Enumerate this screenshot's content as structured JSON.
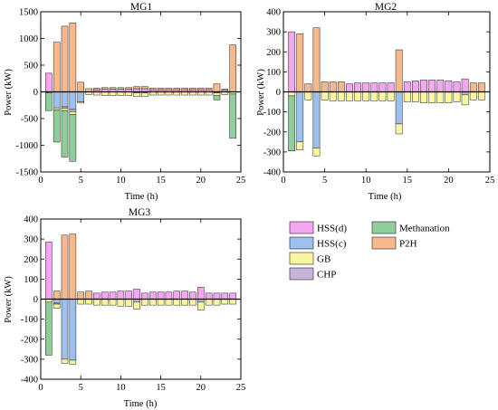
{
  "colors": {
    "hss_d": "#f5a6f0",
    "hss_c": "#9ec0ee",
    "gb": "#faf5a0",
    "chp": "#c6b4d8",
    "methanation": "#8fce9a",
    "p2h": "#f7b98c",
    "edge": "#222222"
  },
  "legend": {
    "items": [
      {
        "key": "hss_d",
        "label": "HSS(d)"
      },
      {
        "key": "hss_c",
        "label": "HSS(c)"
      },
      {
        "key": "gb",
        "label": "GB"
      },
      {
        "key": "chp",
        "label": "CHP"
      },
      {
        "key": "methanation",
        "label": "Methanation"
      },
      {
        "key": "p2h",
        "label": "P2H"
      }
    ]
  },
  "chart_data": [
    {
      "type": "bar",
      "title": "MG1",
      "xlabel": "Time (h)",
      "ylabel": "Power (kW)",
      "xlim": [
        0,
        25
      ],
      "ylim": [
        -1500,
        1500
      ],
      "xticks": [
        0,
        5,
        10,
        15,
        20,
        25
      ],
      "yticks": [
        -1500,
        -1000,
        -500,
        0,
        500,
        1000,
        1500
      ],
      "x": [
        1,
        2,
        3,
        4,
        5,
        6,
        7,
        8,
        9,
        10,
        11,
        12,
        13,
        14,
        15,
        16,
        17,
        18,
        19,
        20,
        21,
        22,
        23,
        24
      ],
      "series": [
        {
          "key": "hss_d",
          "values": [
            350,
            0,
            0,
            0,
            0,
            0,
            40,
            50,
            50,
            50,
            50,
            60,
            60,
            40,
            40,
            40,
            40,
            40,
            40,
            40,
            40,
            0,
            30,
            0
          ]
        },
        {
          "key": "p2h",
          "values": [
            0,
            930,
            1230,
            1290,
            180,
            60,
            30,
            30,
            30,
            30,
            30,
            40,
            40,
            30,
            30,
            30,
            30,
            30,
            30,
            30,
            30,
            150,
            20,
            880
          ]
        },
        {
          "key": "hss_c",
          "values": [
            0,
            -300,
            -280,
            -330,
            -190,
            0,
            0,
            0,
            0,
            0,
            0,
            0,
            0,
            0,
            0,
            0,
            0,
            0,
            0,
            0,
            0,
            0,
            0,
            0
          ]
        },
        {
          "key": "chp",
          "values": [
            0,
            0,
            -30,
            -40,
            0,
            0,
            0,
            0,
            0,
            0,
            0,
            -20,
            -20,
            0,
            0,
            0,
            0,
            0,
            0,
            0,
            0,
            -20,
            0,
            0
          ]
        },
        {
          "key": "gb",
          "values": [
            -20,
            -40,
            -40,
            -50,
            -20,
            -50,
            -60,
            -70,
            -70,
            -70,
            -70,
            -70,
            -70,
            -60,
            -60,
            -60,
            -60,
            -60,
            -60,
            -60,
            -60,
            -50,
            -50,
            -40
          ]
        },
        {
          "key": "methanation",
          "values": [
            -330,
            -600,
            -870,
            -880,
            0,
            0,
            0,
            0,
            0,
            0,
            0,
            0,
            0,
            0,
            0,
            0,
            0,
            0,
            0,
            0,
            0,
            -80,
            0,
            -830
          ]
        }
      ]
    },
    {
      "type": "bar",
      "title": "MG2",
      "xlabel": "Time (h)",
      "ylabel": "Power (kW)",
      "xlim": [
        0,
        25
      ],
      "ylim": [
        -400,
        400
      ],
      "xticks": [
        0,
        5,
        10,
        15,
        20,
        25
      ],
      "yticks": [
        -400,
        -300,
        -200,
        -100,
        0,
        100,
        200,
        300,
        400
      ],
      "x": [
        1,
        2,
        3,
        4,
        5,
        6,
        7,
        8,
        9,
        10,
        11,
        12,
        13,
        14,
        15,
        16,
        17,
        18,
        19,
        20,
        21,
        22,
        23,
        24
      ],
      "series": [
        {
          "key": "hss_d",
          "values": [
            300,
            0,
            0,
            0,
            0,
            0,
            0,
            40,
            45,
            45,
            45,
            45,
            45,
            0,
            50,
            55,
            60,
            60,
            60,
            55,
            50,
            65,
            0,
            0
          ]
        },
        {
          "key": "p2h",
          "values": [
            0,
            290,
            40,
            320,
            50,
            50,
            50,
            0,
            0,
            0,
            0,
            0,
            0,
            210,
            0,
            0,
            0,
            0,
            0,
            0,
            0,
            0,
            45,
            45
          ]
        },
        {
          "key": "hss_c",
          "values": [
            0,
            -250,
            0,
            -280,
            0,
            0,
            0,
            0,
            0,
            0,
            0,
            0,
            0,
            -160,
            0,
            0,
            0,
            0,
            0,
            0,
            0,
            0,
            0,
            0
          ]
        },
        {
          "key": "chp",
          "values": [
            0,
            0,
            0,
            0,
            0,
            0,
            0,
            0,
            0,
            0,
            0,
            0,
            0,
            0,
            0,
            0,
            0,
            0,
            0,
            0,
            0,
            -15,
            0,
            0
          ]
        },
        {
          "key": "gb",
          "values": [
            -20,
            -40,
            -40,
            -40,
            -40,
            -45,
            -45,
            -45,
            -45,
            -45,
            -45,
            -45,
            -45,
            -50,
            -50,
            -50,
            -55,
            -55,
            -55,
            -55,
            -50,
            -50,
            -40,
            -40
          ]
        },
        {
          "key": "methanation",
          "values": [
            -275,
            0,
            0,
            0,
            0,
            0,
            0,
            0,
            0,
            0,
            0,
            0,
            0,
            0,
            0,
            0,
            0,
            0,
            0,
            0,
            0,
            0,
            0,
            0
          ]
        }
      ]
    },
    {
      "type": "bar",
      "title": "MG3",
      "xlabel": "Time (h)",
      "ylabel": "Power (kW)",
      "xlim": [
        0,
        25
      ],
      "ylim": [
        -400,
        400
      ],
      "xticks": [
        0,
        5,
        10,
        15,
        20,
        25
      ],
      "yticks": [
        -400,
        -300,
        -200,
        -100,
        0,
        100,
        200,
        300,
        400
      ],
      "x": [
        1,
        2,
        3,
        4,
        5,
        6,
        7,
        8,
        9,
        10,
        11,
        12,
        13,
        14,
        15,
        16,
        17,
        18,
        19,
        20,
        21,
        22,
        23,
        24
      ],
      "series": [
        {
          "key": "hss_d",
          "values": [
            285,
            0,
            0,
            0,
            0,
            0,
            30,
            35,
            35,
            40,
            40,
            50,
            30,
            35,
            35,
            35,
            40,
            40,
            35,
            60,
            30,
            30,
            30,
            30
          ]
        },
        {
          "key": "p2h",
          "values": [
            0,
            40,
            320,
            325,
            35,
            40,
            0,
            0,
            0,
            0,
            0,
            0,
            0,
            0,
            0,
            0,
            0,
            0,
            0,
            0,
            0,
            0,
            0,
            0
          ]
        },
        {
          "key": "hss_c",
          "values": [
            0,
            -20,
            -300,
            -305,
            0,
            0,
            0,
            0,
            0,
            0,
            0,
            0,
            0,
            0,
            0,
            0,
            0,
            0,
            0,
            0,
            0,
            0,
            0,
            0
          ]
        },
        {
          "key": "chp",
          "values": [
            0,
            -5,
            0,
            0,
            0,
            0,
            0,
            0,
            0,
            0,
            0,
            -15,
            0,
            0,
            0,
            0,
            0,
            0,
            0,
            -15,
            0,
            0,
            0,
            0
          ]
        },
        {
          "key": "gb",
          "values": [
            -15,
            -20,
            -20,
            -20,
            -25,
            -25,
            -30,
            -30,
            -30,
            -35,
            -35,
            -35,
            -30,
            -30,
            -30,
            -30,
            -30,
            -30,
            -30,
            -40,
            -30,
            -30,
            -25,
            -25
          ]
        },
        {
          "key": "methanation",
          "values": [
            -265,
            0,
            0,
            0,
            0,
            0,
            0,
            0,
            0,
            0,
            0,
            0,
            0,
            0,
            0,
            0,
            0,
            0,
            0,
            0,
            0,
            0,
            0,
            0
          ]
        }
      ]
    }
  ]
}
